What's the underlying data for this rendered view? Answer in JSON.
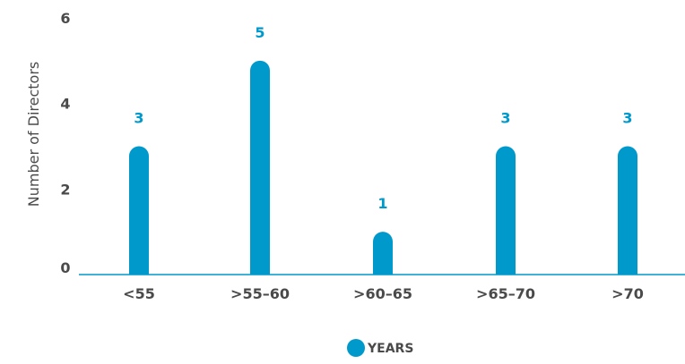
{
  "chart_data": {
    "type": "bar",
    "categories": [
      "<55",
      ">55–60",
      ">60–65",
      ">65–70",
      ">70"
    ],
    "series": [
      {
        "name": "YEARS",
        "values": [
          3,
          5,
          1,
          3,
          3
        ],
        "color": "#0099cc"
      }
    ],
    "ylabel": "Number of Directors",
    "ylim": [
      0,
      6
    ],
    "yticks": [
      "0",
      "2",
      "4",
      "6"
    ],
    "data_labels": [
      "3",
      "5",
      "1",
      "3",
      "3"
    ],
    "legend": {
      "position": "bottom-center",
      "label": "YEARS",
      "icon": "circle-marker"
    },
    "grid": false,
    "colors": {
      "bar": "#0099cc",
      "data_label": "#0099cc",
      "axis": "#0099cc",
      "text": "#4a4a4a"
    }
  }
}
